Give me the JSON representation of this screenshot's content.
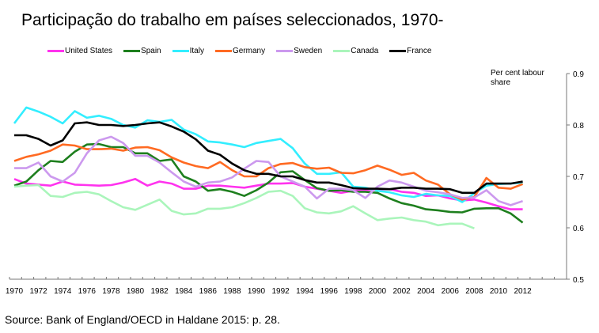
{
  "chart_data": {
    "type": "line",
    "title": "Participação do trabalho em países seleccionados, 1970-",
    "ylabel": "Per cent labour share",
    "xlabel": "",
    "ylim": [
      0.5,
      0.9
    ],
    "yticks": [
      "0.5",
      "0.6",
      "0.7",
      "0.8",
      "0.9"
    ],
    "xticks": [
      "1970",
      "1972",
      "1974",
      "1976",
      "1978",
      "1980",
      "1982",
      "1984",
      "1986",
      "1988",
      "1990",
      "1992",
      "1994",
      "1996",
      "1998",
      "2000",
      "2002",
      "2004",
      "2006",
      "2008",
      "2010",
      "2012"
    ],
    "legend_position": "top",
    "source": "Source: Bank of England/OECD in Haldane 2015: p. 28.",
    "series": [
      {
        "name": "United States",
        "color": "#ff33ee",
        "start": 1970,
        "values": [
          0.695,
          0.686,
          0.684,
          0.682,
          0.69,
          0.684,
          0.683,
          0.682,
          0.683,
          0.688,
          0.695,
          0.682,
          0.69,
          0.686,
          0.676,
          0.676,
          0.682,
          0.682,
          0.68,
          0.678,
          0.682,
          0.686,
          0.686,
          0.687,
          0.68,
          0.676,
          0.672,
          0.668,
          0.672,
          0.673,
          0.675,
          0.675,
          0.67,
          0.668,
          0.662,
          0.663,
          0.657,
          0.653,
          0.655,
          0.649,
          0.642,
          0.636,
          0.636
        ]
      },
      {
        "name": "Spain",
        "color": "#1e7f1e",
        "start": 1970,
        "values": [
          0.682,
          0.69,
          0.712,
          0.73,
          0.728,
          0.748,
          0.762,
          0.763,
          0.757,
          0.757,
          0.745,
          0.745,
          0.73,
          0.733,
          0.7,
          0.69,
          0.672,
          0.675,
          0.67,
          0.662,
          0.673,
          0.688,
          0.708,
          0.71,
          0.693,
          0.677,
          0.672,
          0.673,
          0.67,
          0.67,
          0.668,
          0.657,
          0.648,
          0.643,
          0.636,
          0.634,
          0.631,
          0.63,
          0.637,
          0.638,
          0.638,
          0.628,
          0.61
        ]
      },
      {
        "name": "Italy",
        "color": "#33eeff",
        "start": 1970,
        "values": [
          0.803,
          0.834,
          0.826,
          0.816,
          0.803,
          0.827,
          0.814,
          0.818,
          0.812,
          0.8,
          0.795,
          0.809,
          0.806,
          0.81,
          0.791,
          0.782,
          0.768,
          0.766,
          0.762,
          0.757,
          0.765,
          0.769,
          0.773,
          0.755,
          0.725,
          0.705,
          0.705,
          0.708,
          0.68,
          0.678,
          0.672,
          0.669,
          0.663,
          0.66,
          0.666,
          0.663,
          0.662,
          0.65,
          0.667,
          0.682,
          0.685,
          0.686,
          0.688
        ]
      },
      {
        "name": "Germany",
        "color": "#ff6a22",
        "start": 1970,
        "values": [
          0.73,
          0.738,
          0.743,
          0.75,
          0.762,
          0.76,
          0.753,
          0.753,
          0.754,
          0.75,
          0.756,
          0.757,
          0.751,
          0.737,
          0.727,
          0.72,
          0.716,
          0.728,
          0.712,
          0.7,
          0.7,
          0.716,
          0.724,
          0.726,
          0.718,
          0.715,
          0.717,
          0.707,
          0.706,
          0.712,
          0.721,
          0.713,
          0.703,
          0.707,
          0.692,
          0.684,
          0.665,
          0.655,
          0.66,
          0.697,
          0.678,
          0.676,
          0.685
        ]
      },
      {
        "name": "Sweden",
        "color": "#cc99ee",
        "start": 1970,
        "values": [
          0.716,
          0.716,
          0.727,
          0.7,
          0.69,
          0.707,
          0.745,
          0.77,
          0.777,
          0.765,
          0.74,
          0.74,
          0.727,
          0.708,
          0.69,
          0.68,
          0.688,
          0.69,
          0.698,
          0.715,
          0.73,
          0.728,
          0.7,
          0.69,
          0.68,
          0.657,
          0.676,
          0.676,
          0.673,
          0.658,
          0.68,
          0.692,
          0.688,
          0.68,
          0.672,
          0.669,
          0.665,
          0.658,
          0.659,
          0.673,
          0.652,
          0.644,
          0.652
        ]
      },
      {
        "name": "Canada",
        "color": "#aaf5bb",
        "start": 1970,
        "values": [
          0.68,
          0.682,
          0.683,
          0.662,
          0.66,
          0.668,
          0.67,
          0.665,
          0.652,
          0.64,
          0.635,
          0.645,
          0.655,
          0.633,
          0.626,
          0.628,
          0.637,
          0.637,
          0.64,
          0.648,
          0.658,
          0.67,
          0.672,
          0.662,
          0.638,
          0.63,
          0.628,
          0.632,
          0.642,
          0.628,
          0.615,
          0.618,
          0.62,
          0.615,
          0.612,
          0.605,
          0.608,
          0.608,
          0.599
        ]
      },
      {
        "name": "France",
        "color": "#000000",
        "start": 1970,
        "values": [
          0.78,
          0.78,
          0.773,
          0.76,
          0.77,
          0.803,
          0.805,
          0.8,
          0.8,
          0.798,
          0.8,
          0.803,
          0.805,
          0.797,
          0.787,
          0.772,
          0.75,
          0.742,
          0.725,
          0.712,
          0.705,
          0.705,
          0.7,
          0.7,
          0.693,
          0.688,
          0.688,
          0.683,
          0.677,
          0.676,
          0.676,
          0.675,
          0.678,
          0.678,
          0.676,
          0.676,
          0.675,
          0.668,
          0.668,
          0.686,
          0.686,
          0.686,
          0.69
        ]
      }
    ]
  }
}
